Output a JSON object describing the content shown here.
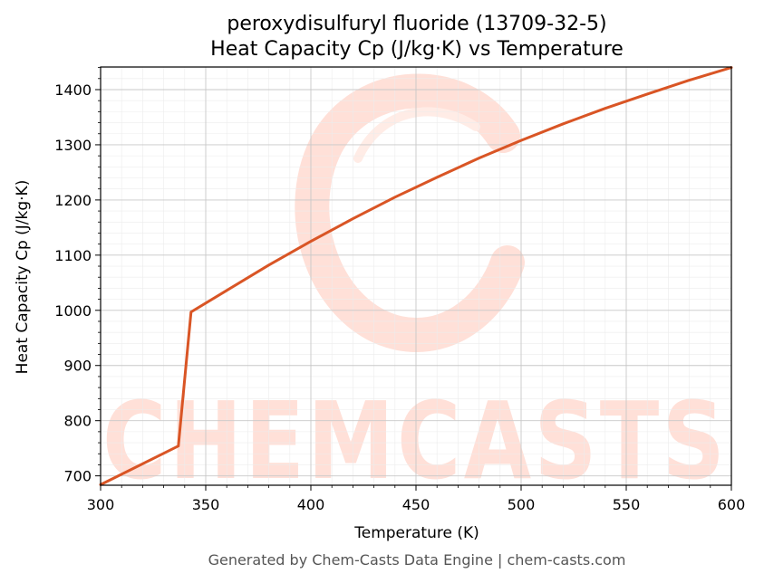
{
  "chart_data": {
    "type": "line",
    "title_line1": "peroxydisulfuryl fluoride (13709-32-5)",
    "title_line2": "Heat Capacity Cp (J/kg·K) vs Temperature",
    "xlabel": "Temperature (K)",
    "ylabel": "Heat Capacity Cp (J/kg·K)",
    "xlim": [
      300,
      600
    ],
    "ylim": [
      683,
      1441
    ],
    "x_ticks": [
      300,
      350,
      400,
      450,
      500,
      550,
      600
    ],
    "y_ticks": [
      700,
      800,
      900,
      1000,
      1100,
      1200,
      1300,
      1400
    ],
    "grid": true,
    "series": [
      {
        "color": "#d95525",
        "x": [
          300,
          337,
          343,
          360,
          380,
          400,
          420,
          440,
          460,
          480,
          500,
          520,
          540,
          560,
          580,
          600
        ],
        "y": [
          684,
          754,
          997,
          1036,
          1082,
          1125,
          1166,
          1205,
          1241,
          1276,
          1308,
          1338,
          1366,
          1392,
          1417,
          1440
        ]
      }
    ]
  },
  "watermark": {
    "text": "CHEMCASTS",
    "color": "#ffe0d8"
  },
  "footer": "Generated by Chem-Casts Data Engine | chem-casts.com"
}
